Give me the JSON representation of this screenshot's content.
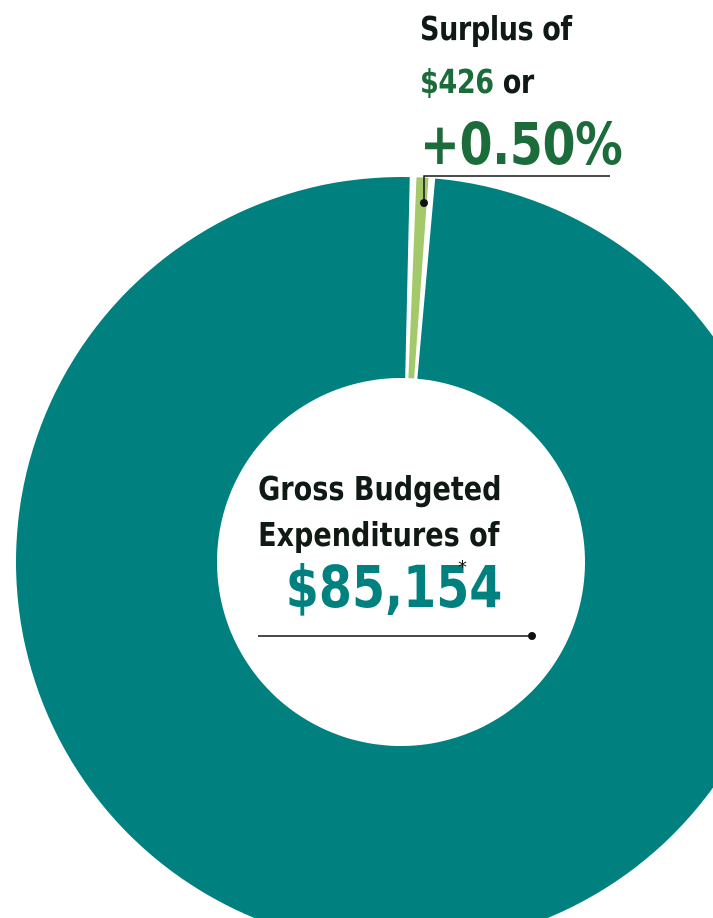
{
  "chart_data": {
    "type": "pie",
    "donut": true,
    "labels": [
      "Gross Budgeted Expenditures",
      "Surplus"
    ],
    "values": [
      85154,
      426
    ],
    "colors": [
      "#00807f",
      "#a4c96a"
    ],
    "annotations": {
      "surplus": {
        "line1": "Surplus of",
        "amount": "$426",
        "connector": "or",
        "percent": "+0.50%"
      },
      "total": {
        "line1": "Gross Budgeted",
        "line2": "Expenditures of",
        "amount": "$85,154",
        "footnote_mark": "*"
      }
    }
  }
}
